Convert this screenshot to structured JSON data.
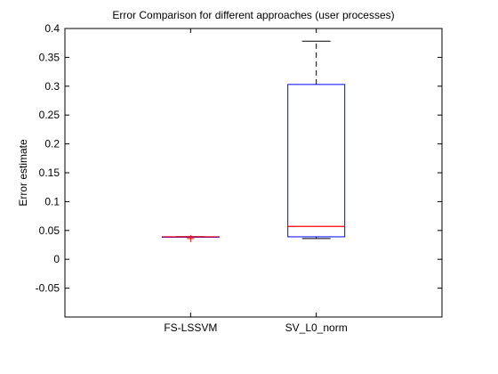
{
  "chart_data": {
    "type": "box",
    "title": "Error Comparison for different approaches (user processes)",
    "xlabel": "",
    "ylabel": "Error estimate",
    "ylim": [
      -0.1,
      0.4
    ],
    "yticks": [
      -0.05,
      0,
      0.05,
      0.1,
      0.15,
      0.2,
      0.25,
      0.3,
      0.35,
      0.4
    ],
    "ytick_labels": [
      "-0.05",
      "0",
      "0.05",
      "0.1",
      "0.15",
      "0.2",
      "0.25",
      "0.3",
      "0.35",
      "0.4"
    ],
    "categories": [
      "FS-LSSVM",
      "SV_L0_norm"
    ],
    "boxes": [
      {
        "name": "FS-LSSVM",
        "whisker_low": 0.039,
        "q1": 0.039,
        "median": 0.039,
        "q3": 0.039,
        "whisker_high": 0.039,
        "outliers": [
          0.036
        ]
      },
      {
        "name": "SV_L0_norm",
        "whisker_low": 0.036,
        "q1": 0.039,
        "median": 0.057,
        "q3": 0.303,
        "whisker_high": 0.378,
        "outliers": []
      }
    ],
    "grid": false,
    "legend": "none",
    "colors": {
      "box": "#0000ff",
      "median": "#ff0000",
      "whisker": "#000000",
      "outlier": "#ff0000",
      "axes": "#000000"
    }
  }
}
